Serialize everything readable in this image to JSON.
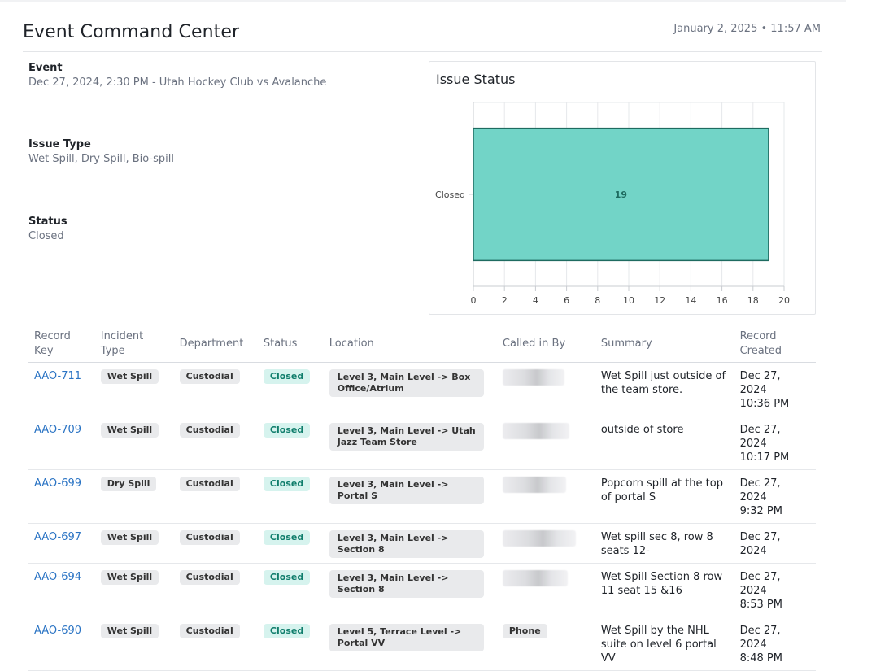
{
  "header": {
    "title": "Event Command Center",
    "datetime": "January 2, 2025 • 11:57 AM"
  },
  "filters": {
    "event": {
      "label": "Event",
      "value": "Dec 27, 2024, 2:30 PM - Utah Hockey Club vs Avalanche"
    },
    "issue_type": {
      "label": "Issue Type",
      "value": "Wet Spill, Dry Spill, Bio-spill"
    },
    "status": {
      "label": "Status",
      "value": "Closed"
    }
  },
  "chart": {
    "title": "Issue Status"
  },
  "chart_data": {
    "type": "bar",
    "orientation": "horizontal",
    "title": "Issue Status",
    "categories": [
      "Closed"
    ],
    "values": [
      19
    ],
    "data_labels": [
      "19"
    ],
    "xlim": [
      0,
      20
    ],
    "xticks": [
      "0",
      "2",
      "4",
      "6",
      "8",
      "10",
      "12",
      "14",
      "16",
      "18",
      "20"
    ],
    "grid": true,
    "bar_color": "#72d4c7",
    "bar_border_color": "#1e6b60"
  },
  "table": {
    "columns": [
      {
        "key": "record_key",
        "label": "Record Key"
      },
      {
        "key": "incident_type",
        "label": "Incident Type"
      },
      {
        "key": "department",
        "label": "Department"
      },
      {
        "key": "status",
        "label": "Status"
      },
      {
        "key": "location",
        "label": "Location"
      },
      {
        "key": "called_in_by",
        "label": "Called in By"
      },
      {
        "key": "summary",
        "label": "Summary"
      },
      {
        "key": "record_created",
        "label": "Record Created"
      }
    ],
    "rows": [
      {
        "record_key": "AAO-711",
        "incident_type": "Wet Spill",
        "department": "Custodial",
        "status": "Closed",
        "location": "Level 3, Main Level -> Box Office/Atrium",
        "called_in_by": "",
        "summary": "Wet Spill just outside of the team store.",
        "created_date": "Dec 27, 2024",
        "created_time": "10:36 PM"
      },
      {
        "record_key": "AAO-709",
        "incident_type": "Wet Spill",
        "department": "Custodial",
        "status": "Closed",
        "location": "Level 3, Main Level -> Utah Jazz Team Store",
        "called_in_by": "",
        "summary": "outside of store",
        "created_date": "Dec 27, 2024",
        "created_time": "10:17 PM"
      },
      {
        "record_key": "AAO-699",
        "incident_type": "Dry Spill",
        "department": "Custodial",
        "status": "Closed",
        "location": "Level 3, Main Level -> Portal S",
        "called_in_by": "",
        "summary": "Popcorn spill at the top of portal S",
        "created_date": "Dec 27, 2024",
        "created_time": "9:32 PM"
      },
      {
        "record_key": "AAO-697",
        "incident_type": "Wet Spill",
        "department": "Custodial",
        "status": "Closed",
        "location": "Level 3, Main Level -> Section 8",
        "called_in_by": "",
        "summary": "Wet spill sec 8, row 8 seats 12-",
        "created_date": "Dec 27, 2024",
        "created_time": ""
      },
      {
        "record_key": "AAO-694",
        "incident_type": "Wet Spill",
        "department": "Custodial",
        "status": "Closed",
        "location": "Level 3, Main Level -> Section 8",
        "called_in_by": "",
        "summary": "Wet Spill Section 8 row 11 seat 15 &16",
        "created_date": "Dec 27, 2024",
        "created_time": "8:53 PM"
      },
      {
        "record_key": "AAO-690",
        "incident_type": "Wet Spill",
        "department": "Custodial",
        "status": "Closed",
        "location": "Level 5, Terrace Level -> Portal VV",
        "called_in_by": "Phone",
        "summary": "Wet Spill by the NHL suite on level 6 portal VV",
        "created_date": "Dec 27, 2024",
        "created_time": "8:48 PM"
      }
    ]
  }
}
